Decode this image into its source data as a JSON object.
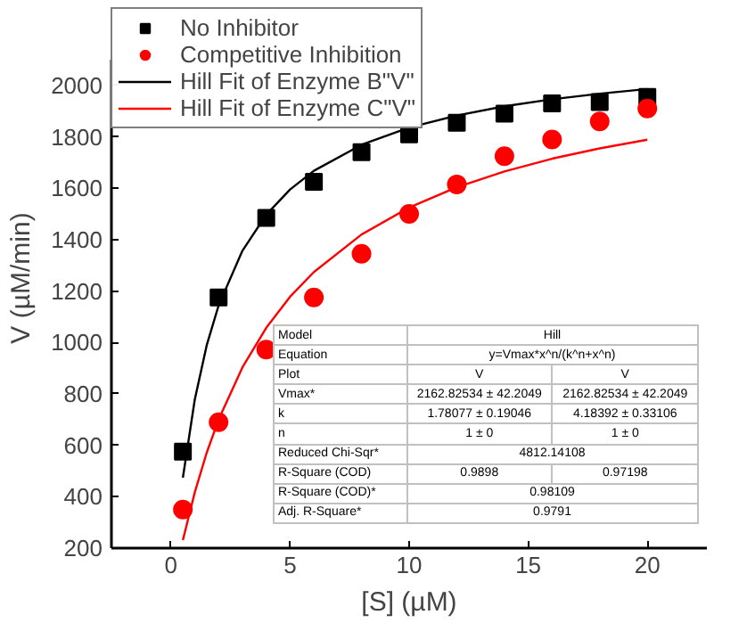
{
  "chart_data": {
    "type": "scatter",
    "xlabel": "[S] (µM)",
    "ylabel": "V (µM/min)",
    "xlim": [
      -2.5,
      22.5
    ],
    "xticks": [
      0,
      5,
      10,
      15,
      20
    ],
    "ylim": [
      200,
      2100
    ],
    "yticks": [
      200,
      400,
      600,
      800,
      1000,
      1200,
      1400,
      1600,
      1800,
      2000
    ],
    "grid": false,
    "legend": "top left",
    "series": [
      {
        "name": "No Inhibitor",
        "marker": "square",
        "color": "#000000",
        "x": [
          0.5,
          2,
          4,
          6,
          8,
          10,
          12,
          14,
          16,
          18,
          20
        ],
        "values": [
          575,
          1175,
          1485,
          1625,
          1740,
          1810,
          1855,
          1890,
          1930,
          1935,
          1955
        ]
      },
      {
        "name": "Competitive Inhibition",
        "marker": "circle",
        "color": "#ff0000",
        "x": [
          0.5,
          2,
          4,
          6,
          8,
          10,
          12,
          14,
          16,
          18,
          20
        ],
        "values": [
          350,
          690,
          972,
          1175,
          1345,
          1500,
          1615,
          1725,
          1790,
          1860,
          1910
        ]
      },
      {
        "name": "Hill Fit of Enzyme B\"V\"",
        "type": "line",
        "marker": "none",
        "line_style": "solid",
        "color": "#000000",
        "x": [
          0.5,
          1,
          1.5,
          2,
          3,
          4,
          5,
          6,
          8,
          10,
          12,
          14,
          16,
          18,
          20
        ],
        "values": [
          474,
          778,
          989,
          1144,
          1357,
          1497,
          1595,
          1668,
          1769,
          1836,
          1883,
          1919,
          1946,
          1968,
          1986
        ]
      },
      {
        "name": "Hill Fit of Enzyme C\"V\"",
        "type": "line",
        "marker": "none",
        "line_style": "solid",
        "color": "#ff0000",
        "x": [
          0.5,
          1,
          1.5,
          2,
          3,
          4,
          5,
          6,
          8,
          10,
          12,
          14,
          16,
          18,
          20
        ],
        "values": [
          231,
          417,
          571,
          700,
          903,
          1057,
          1178,
          1274,
          1420,
          1525,
          1604,
          1665,
          1715,
          1755,
          1789
        ]
      }
    ],
    "annotations": [
      "Model",
      "Hill",
      "Equation",
      "y=Vmax*x^n/(k^n+x^n)",
      "Plot",
      "V",
      "V",
      "Vmax*",
      "2162.82534 ± 42.2049",
      "2162.82534 ± 42.2049",
      "k",
      "1.78077 ± 0.19046",
      "4.18392 ± 0.33106",
      "n",
      "1 ± 0",
      "1 ± 0",
      "Reduced Chi-Sqr*",
      "4812.14108",
      "R-Square (COD)",
      "0.9898",
      "0.97198",
      "R-Square (COD)*",
      "0.98109",
      "Adj. R-Square*",
      "0.9791"
    ]
  }
}
